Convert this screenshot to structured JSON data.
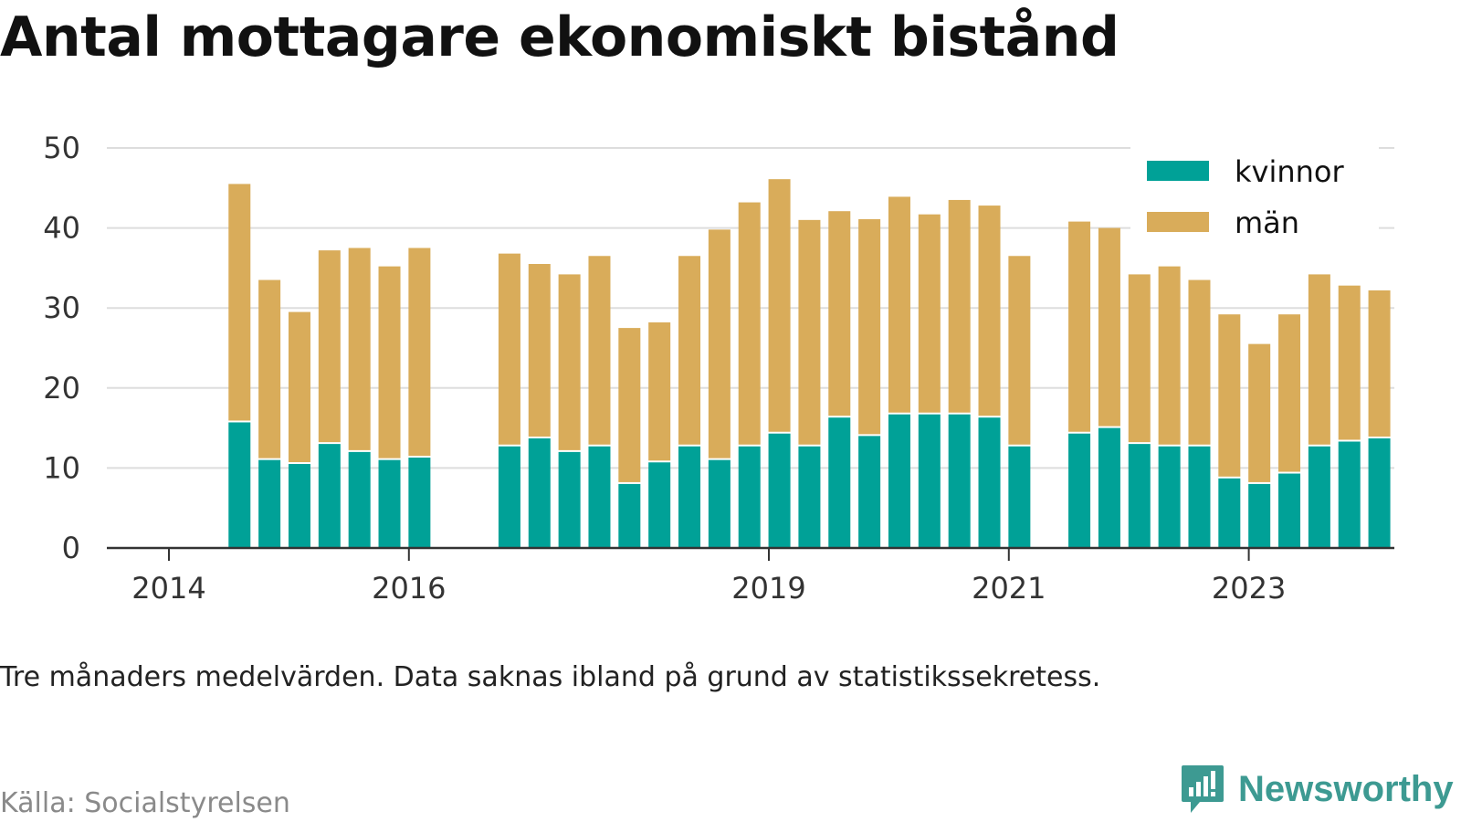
{
  "title": "Antal mottagare ekonomiskt bistånd",
  "note": "Tre månaders medelvärden. Data saknas ibland på grund av statistikssekretess.",
  "source": "Källa: Socialstyrelsen",
  "brand": {
    "name": "Newsworthy",
    "icon": "newsworthy-logo-icon"
  },
  "colors": {
    "kvinnor": "#00a197",
    "man": "#d9ac5a",
    "grid": "#dddddd",
    "axis": "#333333"
  },
  "chart_data": {
    "type": "bar",
    "stacked": true,
    "title": "Antal mottagare ekonomiskt bistånd",
    "xlabel": "",
    "ylabel": "",
    "ylim": [
      0,
      50
    ],
    "yticks": [
      0,
      10,
      20,
      30,
      40,
      50
    ],
    "grid": true,
    "legend_position": "top-right",
    "x_ticks": [
      "2014",
      "2016",
      "2019",
      "2021",
      "2023"
    ],
    "categories": [
      "2014 Q1",
      "2014 Q2",
      "2014 Q3",
      "2014 Q4",
      "2015 Q1",
      "2015 Q2",
      "2015 Q3",
      "2015 Q4",
      "2016 Q1",
      "2016 Q2",
      "2016 Q3",
      "2016 Q4",
      "2017 Q1",
      "2017 Q2",
      "2017 Q3",
      "2017 Q4",
      "2018 Q1",
      "2018 Q2",
      "2018 Q3",
      "2018 Q4",
      "2019 Q1",
      "2019 Q2",
      "2019 Q3",
      "2019 Q4",
      "2020 Q1",
      "2020 Q2",
      "2020 Q3",
      "2020 Q4",
      "2021 Q1",
      "2021 Q2",
      "2021 Q3",
      "2021 Q4",
      "2022 Q1",
      "2022 Q2",
      "2022 Q3",
      "2022 Q4",
      "2023 Q1",
      "2023 Q2",
      "2023 Q3",
      "2023 Q4"
    ],
    "series": [
      {
        "name": "kvinnor",
        "values": [
          null,
          15.7,
          11,
          10.5,
          13,
          12,
          11,
          11.3,
          null,
          null,
          12.7,
          13.7,
          12,
          12.7,
          8,
          10.7,
          12.7,
          11,
          12.7,
          14.3,
          12.7,
          16.3,
          14,
          16.7,
          16.7,
          16.7,
          16.3,
          12.7,
          null,
          14.3,
          15,
          13,
          12.7,
          12.7,
          8.7,
          8,
          9.3,
          12.7,
          13.3,
          13.7
        ]
      },
      {
        "name": "män",
        "values": [
          null,
          29.8,
          22.5,
          19,
          24.2,
          25.5,
          24.2,
          26.2,
          null,
          null,
          24.1,
          21.8,
          22.2,
          23.8,
          19.5,
          17.5,
          23.8,
          28.8,
          30.5,
          31.8,
          28.3,
          25.8,
          27.1,
          27.2,
          25,
          26.8,
          26.5,
          23.8,
          null,
          26.5,
          25,
          21.2,
          22.5,
          20.8,
          20.5,
          17.5,
          19.9,
          21.5,
          19.5,
          18.5
        ]
      }
    ]
  }
}
